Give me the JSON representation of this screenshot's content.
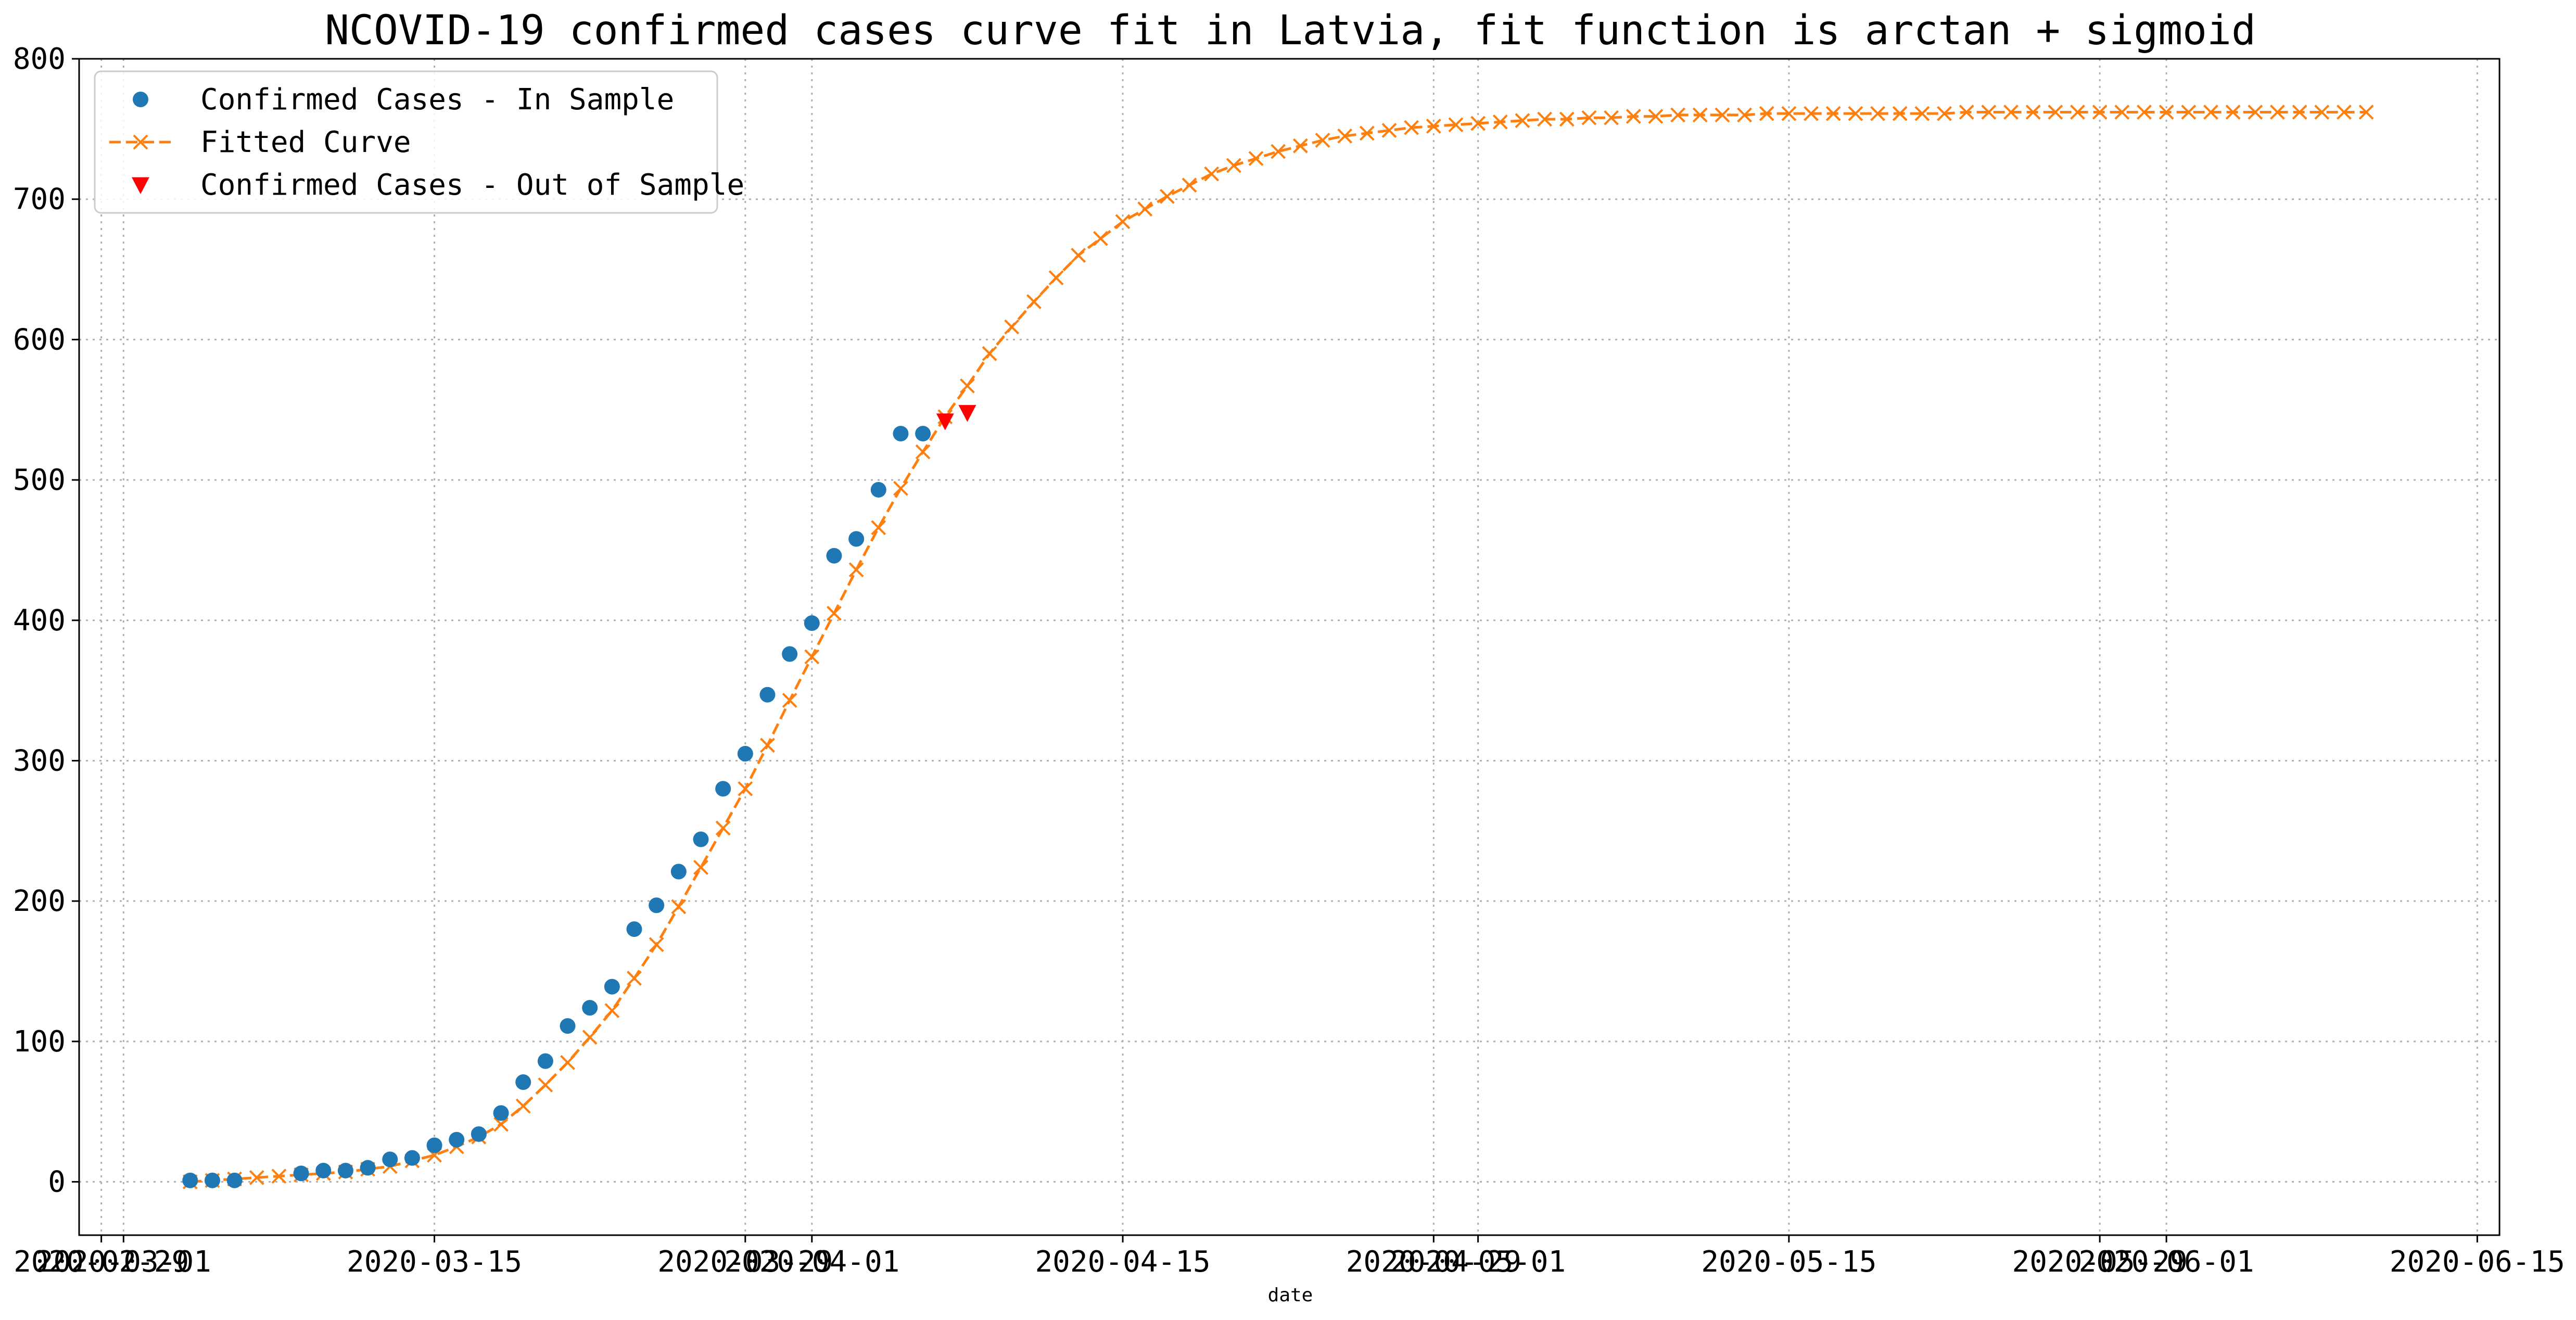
{
  "chart_data": {
    "type": "line",
    "title": "NCOVID-19 confirmed cases curve fit in Latvia, fit function is arctan + sigmoid",
    "xlabel": "date",
    "ylabel": "",
    "x_axis": "date",
    "xlim": [
      "2020-02-28",
      "2020-06-16"
    ],
    "ylim": [
      -38,
      800
    ],
    "grid": true,
    "legend_position": "top-left",
    "x_ticks": [
      {
        "date": "2020-02-29",
        "label": "2020-02-29"
      },
      {
        "date": "2020-03-01",
        "label": "2020-03-01"
      },
      {
        "date": "2020-03-15",
        "label": "2020-03-15"
      },
      {
        "date": "2020-03-29",
        "label": "2020-03-29"
      },
      {
        "date": "2020-04-01",
        "label": "2020-04-01"
      },
      {
        "date": "2020-04-15",
        "label": "2020-04-15"
      },
      {
        "date": "2020-04-29",
        "label": "2020-04-29"
      },
      {
        "date": "2020-05-01",
        "label": "2020-05-01"
      },
      {
        "date": "2020-05-15",
        "label": "2020-05-15"
      },
      {
        "date": "2020-05-29",
        "label": "2020-05-29"
      },
      {
        "date": "2020-06-01",
        "label": "2020-06-01"
      },
      {
        "date": "2020-06-15",
        "label": "2020-06-15"
      }
    ],
    "y_ticks": [
      0,
      100,
      200,
      300,
      400,
      500,
      600,
      700,
      800
    ],
    "series": [
      {
        "name": "Confirmed Cases - In Sample",
        "kind": "points",
        "marker": "circle",
        "color": "#1f77b4",
        "points": [
          [
            "2020-03-04",
            1
          ],
          [
            "2020-03-05",
            1
          ],
          [
            "2020-03-06",
            1
          ],
          [
            "2020-03-09",
            6
          ],
          [
            "2020-03-10",
            8
          ],
          [
            "2020-03-11",
            8
          ],
          [
            "2020-03-12",
            10
          ],
          [
            "2020-03-13",
            16
          ],
          [
            "2020-03-14",
            17
          ],
          [
            "2020-03-15",
            26
          ],
          [
            "2020-03-16",
            30
          ],
          [
            "2020-03-17",
            34
          ],
          [
            "2020-03-18",
            49
          ],
          [
            "2020-03-19",
            71
          ],
          [
            "2020-03-20",
            86
          ],
          [
            "2020-03-21",
            111
          ],
          [
            "2020-03-22",
            124
          ],
          [
            "2020-03-23",
            139
          ],
          [
            "2020-03-24",
            180
          ],
          [
            "2020-03-25",
            197
          ],
          [
            "2020-03-26",
            221
          ],
          [
            "2020-03-27",
            244
          ],
          [
            "2020-03-28",
            280
          ],
          [
            "2020-03-29",
            305
          ],
          [
            "2020-03-30",
            347
          ],
          [
            "2020-03-31",
            376
          ],
          [
            "2020-04-01",
            398
          ],
          [
            "2020-04-02",
            446
          ],
          [
            "2020-04-03",
            458
          ],
          [
            "2020-04-04",
            493
          ],
          [
            "2020-04-05",
            533
          ],
          [
            "2020-04-06",
            533
          ]
        ]
      },
      {
        "name": "Fitted Curve",
        "kind": "line",
        "marker": "x",
        "line_style": "dashed",
        "color": "#ff7f0e",
        "start_date": "2020-03-04",
        "values": [
          0,
          1,
          2,
          3,
          4,
          5,
          6,
          7,
          9,
          11,
          15,
          19,
          25,
          32,
          41,
          54,
          69,
          85,
          103,
          122,
          145,
          169,
          196,
          224,
          252,
          280,
          311,
          343,
          374,
          405,
          436,
          466,
          494,
          520,
          545,
          567,
          590,
          609,
          627,
          644,
          660,
          672,
          684,
          693,
          702,
          710,
          718,
          724,
          729,
          734,
          738,
          742,
          745,
          747,
          749,
          751,
          752,
          753,
          754,
          755,
          756,
          757,
          757,
          758,
          758,
          759,
          759,
          760,
          760,
          760,
          760,
          761,
          761,
          761,
          761,
          761,
          761,
          761,
          761,
          761,
          762,
          762,
          762,
          762,
          762,
          762,
          762,
          762,
          762,
          762,
          762,
          762,
          762,
          762,
          762,
          762,
          762,
          762,
          762
        ]
      },
      {
        "name": "Confirmed Cases - Out of Sample",
        "kind": "points",
        "marker": "triangle-down",
        "color": "#ff0000",
        "points": [
          [
            "2020-04-07",
            542
          ],
          [
            "2020-04-08",
            548
          ]
        ]
      }
    ]
  }
}
